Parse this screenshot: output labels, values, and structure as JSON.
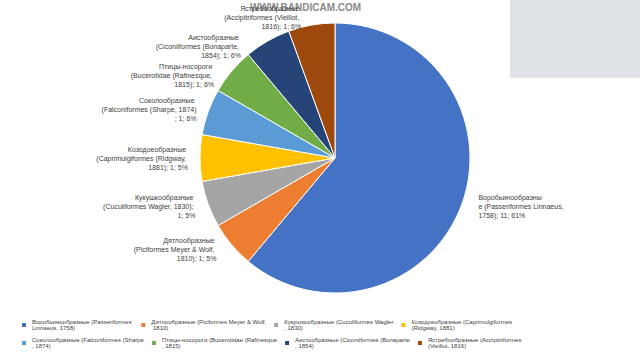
{
  "chart_data": {
    "type": "pie",
    "annotations": [
      "WWW.BANDICAM.COM"
    ],
    "categories": [
      "Воробьинообразные (Passeriformes Linnaeus, 1758)",
      "Дятлообразные (Piciformes Meyer & Wolf, 1810)",
      "Кукушкообразные (Cuculiformes Wagler, 1830)",
      "Козодоеобразные (Caprimulgiformes (Ridgway, 1881)",
      "Соколообразные (Falconiformes (Sharpe, 1874)",
      "Птицы-носороги (Bucerotidae (Rafinesque, 1815)",
      "Аистообразные (Ciconiiformes (Bonaparte, 1854)",
      "Ястребообразные (Accipitriformes (Vieillot, 1816)"
    ],
    "values": [
      11,
      1,
      1,
      1,
      1,
      1,
      1,
      1
    ],
    "value_labels": [
      "Воробьинообразные (Passeriformes Linnaeus, 1758); 11; 61%",
      "Дятлообразные (Piciformes Meyer & Wolf, 1810); 1; 5%",
      "Кукушкообразные (Cuculiformes Wagler, 1830); 1; 5%",
      "Козодоеобразные (Caprimulgiformes (Ridgway, 1881); 1; 5%",
      "Соколообразные (Falconiformes (Sharpe, 1874); 1; 6%",
      "Птицы-носороги (Bucerotidae (Rafinesque, 1815); 1; 6%",
      "Аистообразные (Ciconiiformes (Bonaparte, 1854); 1; 6%",
      "Ястребообразные (Accipitriformes (Vieillot, 1816); 1; 6%"
    ],
    "colors": [
      "#4472c4",
      "#ed7d31",
      "#a5a5a5",
      "#ffc000",
      "#5b9bd5",
      "#70ad47",
      "#264478",
      "#9e480e"
    ],
    "data_labels": true,
    "legend": "bottom"
  }
}
